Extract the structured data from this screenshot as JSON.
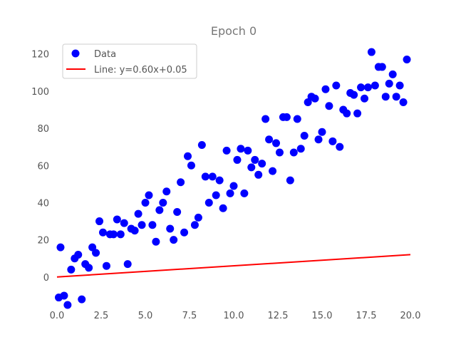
{
  "chart_data": {
    "type": "scatter",
    "title": "Epoch 0",
    "xlabel": "",
    "ylabel": "",
    "xlim": [
      0,
      20
    ],
    "ylim": [
      -15,
      126
    ],
    "xticks": [
      "0.0",
      "2.5",
      "5.0",
      "7.5",
      "10.0",
      "12.5",
      "15.0",
      "17.5",
      "20.0"
    ],
    "yticks": [
      "0",
      "20",
      "40",
      "60",
      "80",
      "100",
      "120"
    ],
    "legend_position": "top-left",
    "grid": false,
    "colors": {
      "points": "#0000ff",
      "line": "#ff0000"
    },
    "series": [
      {
        "name": "Data",
        "kind": "scatter",
        "points": [
          [
            0.1,
            -11
          ],
          [
            0.2,
            16
          ],
          [
            0.4,
            -10
          ],
          [
            0.6,
            -15
          ],
          [
            0.8,
            4
          ],
          [
            1.0,
            10
          ],
          [
            1.2,
            12
          ],
          [
            1.4,
            -12
          ],
          [
            1.6,
            7
          ],
          [
            1.8,
            5
          ],
          [
            2.0,
            16
          ],
          [
            2.2,
            13
          ],
          [
            2.4,
            30
          ],
          [
            2.6,
            24
          ],
          [
            2.8,
            6
          ],
          [
            3.0,
            23
          ],
          [
            3.2,
            23
          ],
          [
            3.4,
            31
          ],
          [
            3.6,
            23
          ],
          [
            3.8,
            29
          ],
          [
            4.0,
            7
          ],
          [
            4.2,
            26
          ],
          [
            4.4,
            25
          ],
          [
            4.6,
            34
          ],
          [
            4.8,
            28
          ],
          [
            5.0,
            40
          ],
          [
            5.2,
            44
          ],
          [
            5.4,
            28
          ],
          [
            5.6,
            19
          ],
          [
            5.8,
            36
          ],
          [
            6.0,
            40
          ],
          [
            6.2,
            46
          ],
          [
            6.4,
            26
          ],
          [
            6.6,
            20
          ],
          [
            6.8,
            35
          ],
          [
            7.0,
            51
          ],
          [
            7.2,
            24
          ],
          [
            7.4,
            65
          ],
          [
            7.6,
            60
          ],
          [
            7.8,
            28
          ],
          [
            8.0,
            32
          ],
          [
            8.2,
            71
          ],
          [
            8.4,
            54
          ],
          [
            8.6,
            40
          ],
          [
            8.8,
            54
          ],
          [
            9.0,
            44
          ],
          [
            9.2,
            52
          ],
          [
            9.4,
            37
          ],
          [
            9.6,
            68
          ],
          [
            9.8,
            45
          ],
          [
            10.0,
            49
          ],
          [
            10.2,
            63
          ],
          [
            10.4,
            69
          ],
          [
            10.6,
            45
          ],
          [
            10.8,
            68
          ],
          [
            11.0,
            59
          ],
          [
            11.2,
            63
          ],
          [
            11.4,
            55
          ],
          [
            11.6,
            61
          ],
          [
            11.8,
            85
          ],
          [
            12.0,
            74
          ],
          [
            12.2,
            57
          ],
          [
            12.4,
            72
          ],
          [
            12.6,
            67
          ],
          [
            12.8,
            86
          ],
          [
            13.0,
            86
          ],
          [
            13.2,
            52
          ],
          [
            13.4,
            67
          ],
          [
            13.6,
            85
          ],
          [
            13.8,
            69
          ],
          [
            14.0,
            76
          ],
          [
            14.2,
            94
          ],
          [
            14.4,
            97
          ],
          [
            14.6,
            96
          ],
          [
            14.8,
            74
          ],
          [
            15.0,
            78
          ],
          [
            15.2,
            101
          ],
          [
            15.4,
            92
          ],
          [
            15.6,
            73
          ],
          [
            15.8,
            103
          ],
          [
            16.0,
            70
          ],
          [
            16.2,
            90
          ],
          [
            16.4,
            88
          ],
          [
            16.6,
            99
          ],
          [
            16.8,
            98
          ],
          [
            17.0,
            88
          ],
          [
            17.2,
            102
          ],
          [
            17.4,
            96
          ],
          [
            17.6,
            102
          ],
          [
            17.8,
            121
          ],
          [
            18.0,
            103
          ],
          [
            18.2,
            113
          ],
          [
            18.4,
            113
          ],
          [
            18.6,
            97
          ],
          [
            18.8,
            104
          ],
          [
            19.0,
            109
          ],
          [
            19.2,
            97
          ],
          [
            19.4,
            103
          ],
          [
            19.6,
            94
          ],
          [
            19.8,
            117
          ]
        ]
      },
      {
        "name": "Line: y=0.60x+0.05",
        "kind": "line",
        "points": [
          [
            0,
            0.05
          ],
          [
            20,
            12.05
          ]
        ]
      }
    ]
  }
}
